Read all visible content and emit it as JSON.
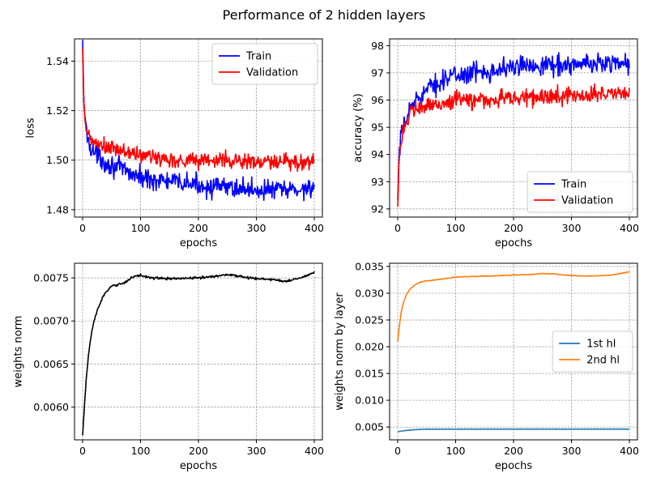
{
  "figure": {
    "title": "Performance of 2 hidden layers"
  },
  "chart_data": [
    {
      "type": "line",
      "name": "loss-chart",
      "xlabel": "epochs",
      "ylabel": "loss",
      "xlim": [
        -14,
        414
      ],
      "ylim": [
        1.477,
        1.549
      ],
      "xticks": [
        0,
        100,
        200,
        300,
        400
      ],
      "yticks": [
        1.48,
        1.5,
        1.52,
        1.54
      ],
      "ytick_labels": [
        "1.48",
        "1.50",
        "1.52",
        "1.54"
      ],
      "grid": true,
      "legend_position": "upper right",
      "series": [
        {
          "name": "Train",
          "color": "#0000ff",
          "noise": 0.0035,
          "x": [
            0,
            2,
            5,
            8,
            10,
            15,
            20,
            30,
            40,
            60,
            80,
            100,
            130,
            160,
            200,
            230,
            260,
            300,
            330,
            360,
            380,
            400
          ],
          "y": [
            1.546,
            1.525,
            1.514,
            1.51,
            1.508,
            1.505,
            1.503,
            1.501,
            1.499,
            1.497,
            1.495,
            1.493,
            1.492,
            1.491,
            1.49,
            1.489,
            1.489,
            1.488,
            1.488,
            1.488,
            1.488,
            1.49
          ]
        },
        {
          "name": "Validation",
          "color": "#ff0000",
          "noise": 0.003,
          "x": [
            0,
            2,
            5,
            8,
            10,
            15,
            20,
            30,
            40,
            60,
            80,
            100,
            130,
            160,
            200,
            230,
            260,
            300,
            330,
            360,
            380,
            400
          ],
          "y": [
            1.543,
            1.522,
            1.514,
            1.511,
            1.51,
            1.508,
            1.507,
            1.506,
            1.505,
            1.504,
            1.503,
            1.502,
            1.501,
            1.5,
            1.5,
            1.5,
            1.5,
            1.499,
            1.499,
            1.499,
            1.499,
            1.5
          ]
        }
      ]
    },
    {
      "type": "line",
      "name": "accuracy-chart",
      "xlabel": "epochs",
      "ylabel": "accuracy (%)",
      "xlim": [
        -14,
        414
      ],
      "ylim": [
        91.7,
        98.25
      ],
      "xticks": [
        0,
        100,
        200,
        300,
        400
      ],
      "yticks": [
        92,
        93,
        94,
        95,
        96,
        97,
        98
      ],
      "ytick_labels": [
        "92",
        "93",
        "94",
        "95",
        "96",
        "97",
        "98"
      ],
      "grid": true,
      "legend_position": "lower right",
      "series": [
        {
          "name": "Train",
          "color": "#0000ff",
          "noise": 0.32,
          "x": [
            0,
            2,
            5,
            8,
            10,
            15,
            20,
            30,
            40,
            60,
            80,
            100,
            130,
            160,
            200,
            230,
            260,
            300,
            330,
            360,
            380,
            400
          ],
          "y": [
            92.0,
            93.8,
            94.5,
            94.8,
            95.0,
            95.3,
            95.6,
            96.0,
            96.2,
            96.5,
            96.8,
            96.9,
            97.0,
            97.1,
            97.2,
            97.3,
            97.3,
            97.3,
            97.3,
            97.4,
            97.4,
            97.3
          ]
        },
        {
          "name": "Validation",
          "color": "#ff0000",
          "noise": 0.28,
          "x": [
            0,
            2,
            5,
            8,
            10,
            15,
            20,
            30,
            40,
            60,
            80,
            100,
            130,
            160,
            200,
            230,
            260,
            300,
            330,
            360,
            380,
            400
          ],
          "y": [
            92.1,
            93.8,
            94.4,
            94.7,
            94.9,
            95.2,
            95.4,
            95.6,
            95.7,
            95.8,
            95.9,
            96.0,
            96.0,
            96.0,
            96.1,
            96.1,
            96.1,
            96.2,
            96.2,
            96.2,
            96.3,
            96.3
          ]
        }
      ]
    },
    {
      "type": "line",
      "name": "weights-norm-chart",
      "xlabel": "epochs",
      "ylabel": "weights norm",
      "xlim": [
        -14,
        414
      ],
      "ylim": [
        0.00562,
        0.00767
      ],
      "xticks": [
        0,
        100,
        200,
        300,
        400
      ],
      "yticks": [
        0.006,
        0.0065,
        0.007,
        0.0075
      ],
      "ytick_labels": [
        "0.0060",
        "0.0065",
        "0.0070",
        "0.0075"
      ],
      "grid": true,
      "legend_position": "",
      "series": [
        {
          "name": "",
          "color": "#000000",
          "noise": 1.2e-05,
          "x": [
            0,
            3,
            6,
            10,
            15,
            20,
            25,
            30,
            35,
            40,
            50,
            60,
            70,
            80,
            90,
            100,
            120,
            150,
            200,
            230,
            250,
            280,
            300,
            330,
            350,
            370,
            390,
            400
          ],
          "y": [
            0.00567,
            0.006,
            0.0063,
            0.0066,
            0.00685,
            0.007,
            0.00712,
            0.0072,
            0.00728,
            0.00733,
            0.0074,
            0.00742,
            0.00744,
            0.00748,
            0.00752,
            0.00753,
            0.0075,
            0.00749,
            0.0075,
            0.00752,
            0.00754,
            0.00751,
            0.00749,
            0.00748,
            0.00746,
            0.00749,
            0.00753,
            0.00757
          ]
        }
      ]
    },
    {
      "type": "line",
      "name": "weights-norm-by-layer-chart",
      "xlabel": "epochs",
      "ylabel": "weights norm by layer",
      "xlim": [
        -14,
        414
      ],
      "ylim": [
        0.0026,
        0.0356
      ],
      "xticks": [
        0,
        100,
        200,
        300,
        400
      ],
      "yticks": [
        0.005,
        0.01,
        0.015,
        0.02,
        0.025,
        0.03,
        0.035
      ],
      "ytick_labels": [
        "0.005",
        "0.010",
        "0.015",
        "0.020",
        "0.025",
        "0.030",
        "0.035"
      ],
      "grid": true,
      "legend_position": "center right",
      "series": [
        {
          "name": "1st hl",
          "color": "#1f77b4",
          "noise": 1e-05,
          "x": [
            0,
            5,
            10,
            20,
            30,
            50,
            80,
            100,
            150,
            200,
            250,
            300,
            350,
            400
          ],
          "y": [
            0.0041,
            0.0042,
            0.0043,
            0.0044,
            0.0045,
            0.0046,
            0.0046,
            0.0046,
            0.0046,
            0.0046,
            0.0046,
            0.0046,
            0.0046,
            0.0046
          ]
        },
        {
          "name": "2nd hl",
          "color": "#ff7f0e",
          "noise": 6e-05,
          "x": [
            0,
            3,
            6,
            10,
            15,
            20,
            30,
            40,
            50,
            60,
            80,
            100,
            120,
            150,
            180,
            200,
            230,
            250,
            270,
            300,
            330,
            350,
            370,
            390,
            400
          ],
          "y": [
            0.021,
            0.024,
            0.0265,
            0.0283,
            0.0297,
            0.0306,
            0.0316,
            0.0321,
            0.0323,
            0.0324,
            0.0327,
            0.033,
            0.0331,
            0.0332,
            0.0333,
            0.0334,
            0.0335,
            0.0337,
            0.0336,
            0.0333,
            0.0332,
            0.0333,
            0.0334,
            0.0338,
            0.034
          ]
        }
      ]
    }
  ]
}
